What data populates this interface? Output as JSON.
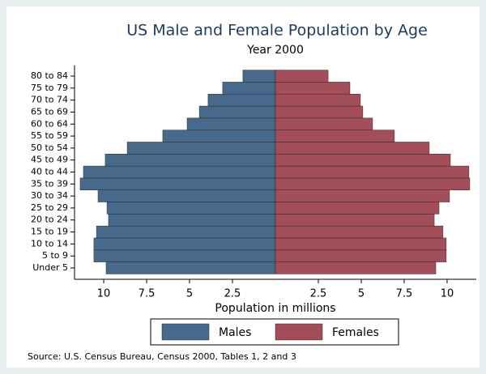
{
  "chart_data": {
    "type": "pyramid",
    "title": "US Male and Female Population by Age",
    "subtitle": "Year 2000",
    "x_label": "Population in millions",
    "source": "Source:  U.S. Census Bureau, Census 2000, Tables 1, 2 and 3",
    "categories": [
      "Under 5",
      "5 to 9",
      "10 to 14",
      "15 to 19",
      "20 to 24",
      "25 to 29",
      "30 to 34",
      "35 to 39",
      "40 to 44",
      "45 to 49",
      "50 to 54",
      "55 to 59",
      "60 to 64",
      "65 to 69",
      "70 to 74",
      "75 to 79",
      "80 to 84"
    ],
    "series": [
      {
        "name": "Males",
        "color": "#46698c",
        "side": "left",
        "values": [
          9.86,
          10.57,
          10.57,
          10.42,
          9.72,
          9.81,
          10.33,
          11.37,
          11.18,
          9.91,
          8.63,
          6.56,
          5.14,
          4.43,
          3.92,
          3.07,
          1.89
        ]
      },
      {
        "name": "Females",
        "color": "#a34e58",
        "side": "right",
        "values": [
          9.34,
          9.95,
          9.95,
          9.76,
          9.25,
          9.53,
          10.14,
          11.32,
          11.27,
          10.19,
          8.96,
          6.93,
          5.66,
          5.09,
          4.95,
          4.34,
          3.07
        ]
      }
    ],
    "xlim": [
      0,
      11.7
    ],
    "xticks": [
      2.5,
      5,
      7.5,
      10
    ]
  }
}
